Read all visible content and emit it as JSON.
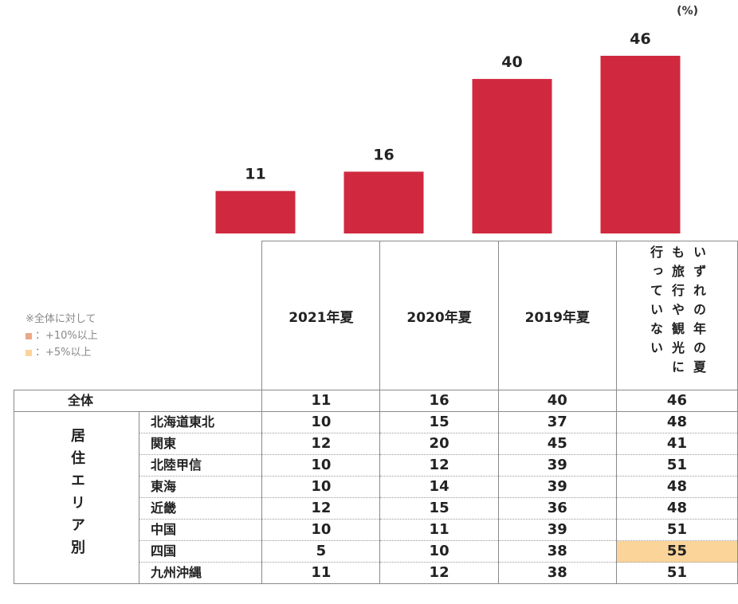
{
  "unit_label": "(%)",
  "legend": {
    "title": "※全体に対して",
    "items": [
      {
        "label": "：+10%以上",
        "color": "#e9a987"
      },
      {
        "label": "：+5%以上",
        "color": "#fbd49a"
      }
    ]
  },
  "bar_color": "#d0293f",
  "highlight_colors": {
    "plus10": "#e9a987",
    "plus5": "#fbd49a"
  },
  "chart_data": {
    "type": "bar",
    "categories": [
      "2021年夏",
      "2020年夏",
      "2019年夏",
      "いずれの年の夏も旅行や観光に行っていない"
    ],
    "values": [
      11,
      16,
      40,
      46
    ],
    "ylim": [
      0,
      46
    ]
  },
  "table": {
    "headers": [
      "2021年夏",
      "2020年夏",
      "2019年夏",
      "いずれの年の夏も旅行や観光に行っていない"
    ],
    "total_row": {
      "label": "全体",
      "values": [
        "11",
        "16",
        "40",
        "46"
      ]
    },
    "group_label": "居住エリア別",
    "rows": [
      {
        "label": "北海道東北",
        "values": [
          "10",
          "15",
          "37",
          "48"
        ],
        "highlight": [
          null,
          null,
          null,
          null
        ]
      },
      {
        "label": "関東",
        "values": [
          "12",
          "20",
          "45",
          "41"
        ],
        "highlight": [
          null,
          null,
          null,
          null
        ]
      },
      {
        "label": "北陸甲信",
        "values": [
          "10",
          "12",
          "39",
          "51"
        ],
        "highlight": [
          null,
          null,
          null,
          null
        ]
      },
      {
        "label": "東海",
        "values": [
          "10",
          "14",
          "39",
          "48"
        ],
        "highlight": [
          null,
          null,
          null,
          null
        ]
      },
      {
        "label": "近畿",
        "values": [
          "12",
          "15",
          "36",
          "48"
        ],
        "highlight": [
          null,
          null,
          null,
          null
        ]
      },
      {
        "label": "中国",
        "values": [
          "10",
          "11",
          "39",
          "51"
        ],
        "highlight": [
          null,
          null,
          null,
          null
        ]
      },
      {
        "label": "四国",
        "values": [
          "5",
          "10",
          "38",
          "55"
        ],
        "highlight": [
          null,
          null,
          null,
          "plus5"
        ]
      },
      {
        "label": "九州沖縄",
        "values": [
          "11",
          "12",
          "38",
          "51"
        ],
        "highlight": [
          null,
          null,
          null,
          null
        ]
      }
    ]
  }
}
